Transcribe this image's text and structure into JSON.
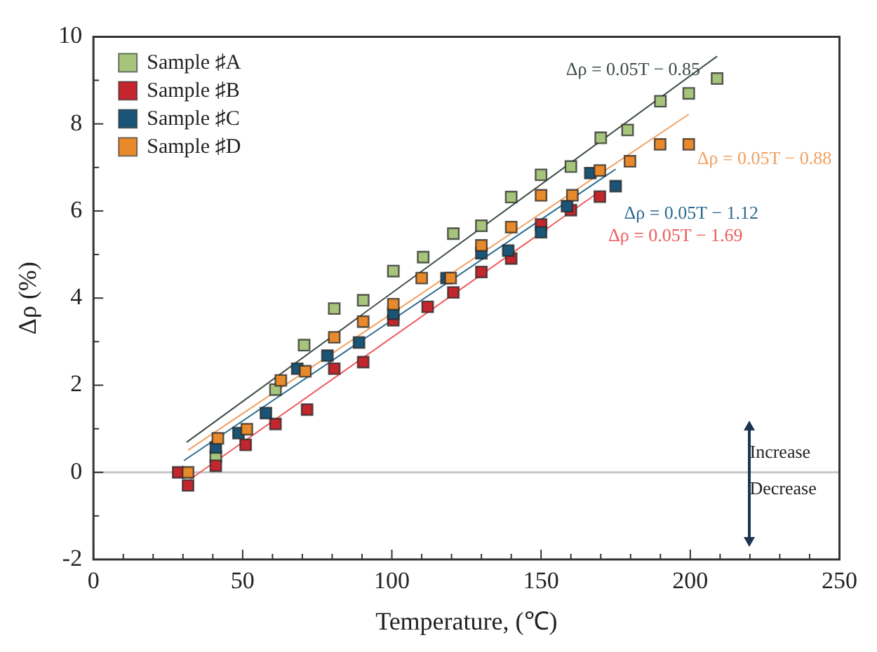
{
  "chart_data": {
    "type": "scatter",
    "xlabel": "Temperature, (℃)",
    "ylabel": "Δρ (%)",
    "xlim": [
      0,
      250
    ],
    "xticks": [
      0,
      {
        "value": 10,
        "label": null
      },
      {
        "value": 20,
        "label": null
      },
      {
        "value": 30,
        "label": null
      },
      {
        "value": 40,
        "label": null
      },
      50,
      {
        "value": 60,
        "label": null
      },
      {
        "value": 70,
        "label": null
      },
      {
        "value": 80,
        "label": null
      },
      {
        "value": 90,
        "label": null
      },
      100,
      {
        "value": 110,
        "label": null
      },
      {
        "value": 120,
        "label": null
      },
      {
        "value": 130,
        "label": null
      },
      {
        "value": 140,
        "label": null
      },
      150,
      {
        "value": 160,
        "label": null
      },
      {
        "value": 170,
        "label": null
      },
      {
        "value": 180,
        "label": null
      },
      {
        "value": 190,
        "label": null
      },
      200,
      {
        "value": 210,
        "label": null
      },
      {
        "value": 220,
        "label": null
      },
      {
        "value": 230,
        "label": null
      },
      {
        "value": 240,
        "label": null
      },
      250
    ],
    "ylim": [
      -2,
      10
    ],
    "yticks": [
      -2,
      {
        "value": -1,
        "label": null
      },
      0,
      {
        "value": 1,
        "label": null
      },
      2,
      {
        "value": 3,
        "label": null
      },
      4,
      {
        "value": 5,
        "label": null
      },
      6,
      {
        "value": 7,
        "label": null
      },
      8,
      {
        "value": 9,
        "label": null
      },
      10
    ],
    "legend": "top left",
    "marker": "square",
    "grid": false,
    "ref_lines": [
      {
        "axis": "y",
        "value": 0,
        "color": "#c4c8cc"
      }
    ],
    "annotations": [
      "Δρ = 0.05T − 0.85",
      "Δρ = 0.05T − 1.69",
      "Δρ = 0.05T − 1.12",
      "Δρ = 0.05T − 0.88",
      "Increase",
      "Decrease"
    ],
    "series": [
      {
        "name": "Sample ♯A",
        "color": "#a6c47c",
        "x": [
          41,
          61,
          70.6,
          80.7,
          90.4,
          100.5,
          110.5,
          120.6,
          130,
          140,
          150,
          160,
          170,
          179,
          190,
          199.5,
          209
        ],
        "values": [
          0.36,
          1.9,
          2.92,
          3.76,
          3.95,
          4.62,
          4.94,
          5.48,
          5.66,
          6.32,
          6.83,
          7.02,
          7.68,
          7.86,
          8.52,
          8.7,
          9.04
        ]
      },
      {
        "name": "Sample ♯B",
        "color": "#c4262e",
        "x": [
          28.4,
          31.7,
          41,
          51,
          61,
          71.6,
          80.7,
          90.4,
          100.5,
          112,
          120.6,
          130,
          140,
          150,
          160,
          169.7
        ],
        "values": [
          0,
          -0.3,
          0.15,
          0.63,
          1.11,
          1.44,
          2.38,
          2.53,
          3.49,
          3.8,
          4.13,
          4.6,
          4.91,
          5.69,
          6.02,
          6.33
        ]
      },
      {
        "name": "Sample ♯C",
        "color": "#1a5577",
        "x": [
          41,
          48.6,
          57.8,
          68.3,
          78.4,
          89,
          100.5,
          118.3,
          130,
          139,
          150,
          158.7,
          166.5,
          175
        ],
        "values": [
          0.57,
          0.9,
          1.36,
          2.38,
          2.68,
          2.98,
          3.64,
          4.46,
          5.03,
          5.09,
          5.51,
          6.11,
          6.87,
          6.57
        ]
      },
      {
        "name": "Sample ♯D",
        "color": "#e88a2c",
        "x": [
          31.7,
          41.7,
          51.4,
          62.8,
          71,
          80.7,
          90.4,
          100.5,
          110,
          119.7,
          130,
          140,
          150,
          160.5,
          169.7,
          179.8,
          189.9,
          199.5
        ],
        "values": [
          0,
          0.78,
          0.99,
          2.11,
          2.32,
          3.1,
          3.46,
          3.86,
          4.46,
          4.46,
          5.21,
          5.63,
          6.36,
          6.36,
          6.93,
          7.14,
          7.53,
          7.53
        ]
      },
      {
        "type": "line",
        "marker": "none",
        "color": "#3c4a44",
        "x": [
          31.2,
          209
        ],
        "values": [
          0.69,
          9.55
        ]
      },
      {
        "type": "line",
        "marker": "none",
        "color": "#f05a5a",
        "x": [
          32.6,
          169.7
        ],
        "values": [
          -0.15,
          6.45
        ]
      },
      {
        "type": "line",
        "marker": "none",
        "color": "#2a6a90",
        "x": [
          30.3,
          175
        ],
        "values": [
          0.27,
          6.96
        ]
      },
      {
        "type": "line",
        "marker": "none",
        "color": "#f0a060",
        "x": [
          31.7,
          199.5
        ],
        "values": [
          0.51,
          8.22
        ]
      }
    ]
  }
}
